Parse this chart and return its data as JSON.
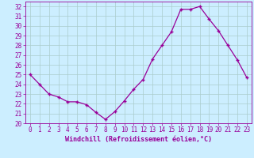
{
  "x": [
    0,
    1,
    2,
    3,
    4,
    5,
    6,
    7,
    8,
    9,
    10,
    11,
    12,
    13,
    14,
    15,
    16,
    17,
    18,
    19,
    20,
    21,
    22,
    23
  ],
  "y": [
    25.0,
    24.0,
    23.0,
    22.7,
    22.2,
    22.2,
    21.9,
    21.1,
    20.4,
    21.2,
    22.3,
    23.5,
    24.5,
    26.6,
    28.0,
    29.4,
    31.7,
    31.7,
    32.0,
    30.7,
    29.5,
    28.0,
    26.5,
    24.7
  ],
  "line_color": "#990099",
  "marker": "+",
  "bg_color": "#cceeff",
  "grid_color": "#aacccc",
  "xlabel": "Windchill (Refroidissement éolien,°C)",
  "xlim": [
    -0.5,
    23.5
  ],
  "ylim": [
    20,
    32.5
  ],
  "yticks": [
    20,
    21,
    22,
    23,
    24,
    25,
    26,
    27,
    28,
    29,
    30,
    31,
    32
  ],
  "xtick_labels": [
    "0",
    "1",
    "2",
    "3",
    "4",
    "5",
    "6",
    "7",
    "8",
    "9",
    "10",
    "11",
    "12",
    "13",
    "14",
    "15",
    "16",
    "17",
    "18",
    "19",
    "20",
    "21",
    "22",
    "23"
  ],
  "font_color": "#990099",
  "font_size_tick": 5.5,
  "font_size_xlabel": 6.0,
  "marker_size": 3.5,
  "line_width": 0.9
}
